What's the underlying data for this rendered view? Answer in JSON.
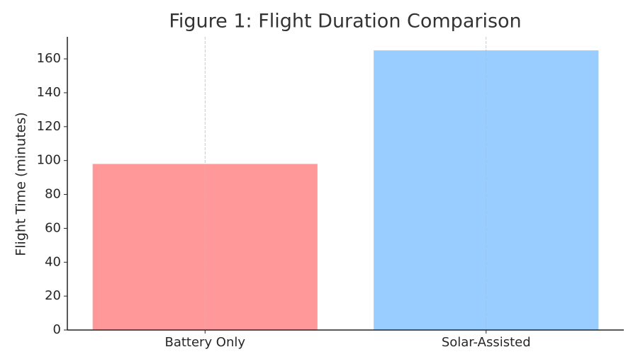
{
  "chart_data": {
    "type": "bar",
    "title": "Figure 1: Flight Duration Comparison",
    "y_label": "Flight Time (minutes)",
    "categories": [
      "Battery Only",
      "Solar-Assisted"
    ],
    "values": [
      98,
      165
    ],
    "colors": [
      "#ff9999",
      "#99ccff"
    ],
    "ylim": [
      0,
      173
    ],
    "yticks": [
      0,
      20,
      40,
      60,
      80,
      100,
      120,
      140,
      160
    ],
    "grid": true
  }
}
